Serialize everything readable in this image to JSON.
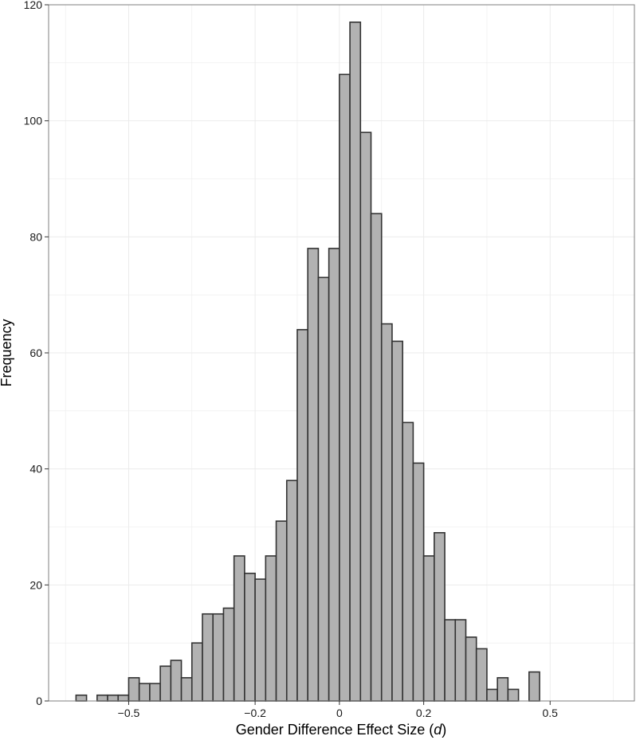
{
  "chart_data": {
    "type": "bar",
    "subtype": "histogram",
    "xlabel": "Gender Difference Effect Size (",
    "xlabel_italic": "d",
    "xlabel_suffix": ")",
    "ylabel": "Frequency",
    "xlim": [
      -0.69,
      0.7
    ],
    "ylim": [
      0,
      120
    ],
    "x_ticks": [
      -0.5,
      -0.2,
      0,
      0.2,
      0.5
    ],
    "x_tick_labels": [
      "−0.5",
      "−0.2",
      "0",
      "0.2",
      "0.5"
    ],
    "y_ticks": [
      0,
      20,
      40,
      60,
      80,
      100,
      120
    ],
    "y_tick_labels": [
      "0",
      "20",
      "40",
      "60",
      "80",
      "100",
      "120"
    ],
    "grid": true,
    "bin_width": 0.025,
    "bins": [
      {
        "x0": -0.625,
        "count": 1
      },
      {
        "x0": -0.6,
        "count": 0
      },
      {
        "x0": -0.575,
        "count": 1
      },
      {
        "x0": -0.55,
        "count": 1
      },
      {
        "x0": -0.525,
        "count": 1
      },
      {
        "x0": -0.5,
        "count": 4
      },
      {
        "x0": -0.475,
        "count": 3
      },
      {
        "x0": -0.45,
        "count": 3
      },
      {
        "x0": -0.425,
        "count": 6
      },
      {
        "x0": -0.4,
        "count": 7
      },
      {
        "x0": -0.375,
        "count": 4
      },
      {
        "x0": -0.35,
        "count": 10
      },
      {
        "x0": -0.325,
        "count": 15
      },
      {
        "x0": -0.3,
        "count": 15
      },
      {
        "x0": -0.275,
        "count": 16
      },
      {
        "x0": -0.25,
        "count": 25
      },
      {
        "x0": -0.225,
        "count": 22
      },
      {
        "x0": -0.2,
        "count": 21
      },
      {
        "x0": -0.175,
        "count": 25
      },
      {
        "x0": -0.15,
        "count": 31
      },
      {
        "x0": -0.125,
        "count": 38
      },
      {
        "x0": -0.1,
        "count": 64
      },
      {
        "x0": -0.075,
        "count": 78
      },
      {
        "x0": -0.05,
        "count": 73
      },
      {
        "x0": -0.025,
        "count": 78
      },
      {
        "x0": 0.0,
        "count": 108
      },
      {
        "x0": 0.025,
        "count": 117
      },
      {
        "x0": 0.05,
        "count": 98
      },
      {
        "x0": 0.075,
        "count": 84
      },
      {
        "x0": 0.1,
        "count": 65
      },
      {
        "x0": 0.125,
        "count": 62
      },
      {
        "x0": 0.15,
        "count": 48
      },
      {
        "x0": 0.175,
        "count": 41
      },
      {
        "x0": 0.2,
        "count": 25
      },
      {
        "x0": 0.225,
        "count": 29
      },
      {
        "x0": 0.25,
        "count": 14
      },
      {
        "x0": 0.275,
        "count": 14
      },
      {
        "x0": 0.3,
        "count": 11
      },
      {
        "x0": 0.325,
        "count": 9
      },
      {
        "x0": 0.35,
        "count": 2
      },
      {
        "x0": 0.375,
        "count": 4
      },
      {
        "x0": 0.4,
        "count": 2
      },
      {
        "x0": 0.425,
        "count": 0
      },
      {
        "x0": 0.45,
        "count": 5
      },
      {
        "x0": 0.475,
        "count": 0
      },
      {
        "x0": 0.5,
        "count": 0
      },
      {
        "x0": 0.525,
        "count": 0
      },
      {
        "x0": 0.55,
        "count": 0
      },
      {
        "x0": 0.575,
        "count": 0
      },
      {
        "x0": 0.6,
        "count": 0
      },
      {
        "x0": 0.625,
        "count": 0
      }
    ],
    "colors": {
      "bar_fill": "#b2b2b2",
      "bar_stroke": "#333333",
      "grid": "#ebebeb",
      "panel_border": "#7f7f7f"
    }
  }
}
